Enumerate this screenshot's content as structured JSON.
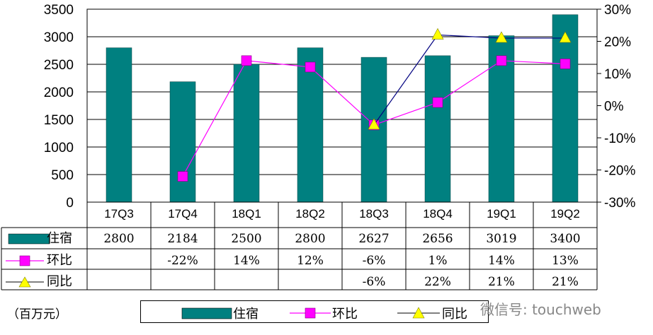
{
  "chart_data": {
    "type": "bar",
    "categories": [
      "17Q3",
      "17Q4",
      "18Q1",
      "18Q2",
      "18Q3",
      "18Q4",
      "19Q1",
      "19Q2"
    ],
    "series": [
      {
        "name": "住宿",
        "type": "bar",
        "axis": "left",
        "values": [
          2800,
          2184,
          2500,
          2800,
          2627,
          2656,
          3019,
          3400
        ],
        "color": "#008080"
      },
      {
        "name": "环比",
        "type": "line",
        "axis": "right",
        "values": [
          null,
          -22,
          14,
          12,
          -6,
          1,
          14,
          13
        ],
        "color": "#FF00FF"
      },
      {
        "name": "同比",
        "type": "line",
        "axis": "right",
        "values": [
          null,
          null,
          null,
          null,
          -6,
          22,
          21,
          21
        ],
        "color": "#000080",
        "marker_color": "#FFFF00"
      }
    ],
    "left_axis": {
      "ylim": [
        0,
        3500
      ],
      "ticks": [
        "0",
        "500",
        "1000",
        "1500",
        "2000",
        "2500",
        "3000",
        "3500"
      ]
    },
    "right_axis": {
      "ylim": [
        -30,
        30
      ],
      "ticks": [
        "-30%",
        "-20%",
        "-10%",
        "0%",
        "10%",
        "20%",
        "30%"
      ]
    },
    "grid": true
  },
  "table": {
    "rows": [
      {
        "label": "住宿",
        "cells": [
          "2800",
          "2184",
          "2500",
          "2800",
          "2627",
          "2656",
          "3019",
          "3400"
        ]
      },
      {
        "label": "环比",
        "cells": [
          "",
          "-22%",
          "14%",
          "12%",
          "-6%",
          "1%",
          "14%",
          "13%"
        ]
      },
      {
        "label": "同比",
        "cells": [
          "",
          "",
          "",
          "",
          "-6%",
          "22%",
          "21%",
          "21%"
        ]
      }
    ]
  },
  "unit_label": "（百万元）",
  "legend": [
    "住宿",
    "环比",
    "同比"
  ],
  "watermark": "微信号: touchweb"
}
